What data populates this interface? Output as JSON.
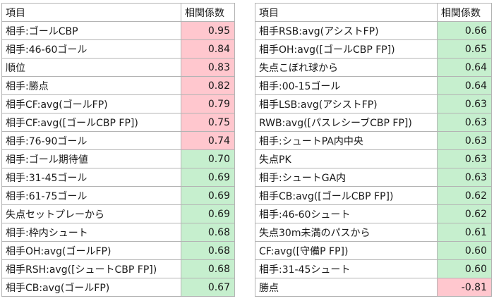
{
  "headers": {
    "item": "項目",
    "coef": "相関係数"
  },
  "colors": {
    "positive_fill": "#c6efce",
    "negative_fill": "#ffc7ce"
  },
  "left_table": [
    {
      "item": "相手:ゴールCBP",
      "value": "0.95",
      "tone": "neg"
    },
    {
      "item": "相手:46-60ゴール",
      "value": "0.84",
      "tone": "neg"
    },
    {
      "item": "順位",
      "value": "0.83",
      "tone": "neg"
    },
    {
      "item": "相手:勝点",
      "value": "0.82",
      "tone": "neg"
    },
    {
      "item": "相手CF:avg(ゴールFP)",
      "value": "0.79",
      "tone": "neg"
    },
    {
      "item": "相手CF:avg([ゴールCBP FP])",
      "value": "0.75",
      "tone": "neg"
    },
    {
      "item": "相手:76-90ゴール",
      "value": "0.74",
      "tone": "neg"
    },
    {
      "item": "相手:ゴール期待値",
      "value": "0.70",
      "tone": "pos"
    },
    {
      "item": "相手:31-45ゴール",
      "value": "0.69",
      "tone": "pos"
    },
    {
      "item": "相手:61-75ゴール",
      "value": "0.69",
      "tone": "pos"
    },
    {
      "item": "失点セットプレーから",
      "value": "0.69",
      "tone": "pos"
    },
    {
      "item": "相手:枠内シュート",
      "value": "0.68",
      "tone": "pos"
    },
    {
      "item": "相手OH:avg(ゴールFP)",
      "value": "0.68",
      "tone": "pos"
    },
    {
      "item": "相手RSH:avg([シュートCBP FP])",
      "value": "0.68",
      "tone": "pos"
    },
    {
      "item": "相手CB:avg(ゴールFP)",
      "value": "0.67",
      "tone": "pos"
    }
  ],
  "right_table": [
    {
      "item": "相手RSB:avg(アシストFP)",
      "value": "0.66",
      "tone": "pos"
    },
    {
      "item": "相手OH:avg([ゴールCBP FP])",
      "value": "0.65",
      "tone": "pos"
    },
    {
      "item": "失点こぼれ球から",
      "value": "0.64",
      "tone": "pos"
    },
    {
      "item": "相手:00-15ゴール",
      "value": "0.64",
      "tone": "pos"
    },
    {
      "item": "相手LSB:avg(アシストFP)",
      "value": "0.63",
      "tone": "pos"
    },
    {
      "item": "RWB:avg([パスレシーブCBP FP])",
      "value": "0.63",
      "tone": "pos"
    },
    {
      "item": "相手:シュートPA内中央",
      "value": "0.63",
      "tone": "pos"
    },
    {
      "item": "失点PK",
      "value": "0.63",
      "tone": "pos"
    },
    {
      "item": "相手:シュートGA内",
      "value": "0.63",
      "tone": "pos"
    },
    {
      "item": "相手CB:avg([ゴールCBP FP])",
      "value": "0.62",
      "tone": "pos"
    },
    {
      "item": "相手:46-60シュート",
      "value": "0.62",
      "tone": "pos"
    },
    {
      "item": "失点30m未満のパスから",
      "value": "0.61",
      "tone": "pos"
    },
    {
      "item": "CF:avg([守備P FP])",
      "value": "0.60",
      "tone": "pos"
    },
    {
      "item": "相手:31-45シュート",
      "value": "0.60",
      "tone": "pos"
    },
    {
      "item": "勝点",
      "value": "-0.81",
      "tone": "neg"
    }
  ]
}
